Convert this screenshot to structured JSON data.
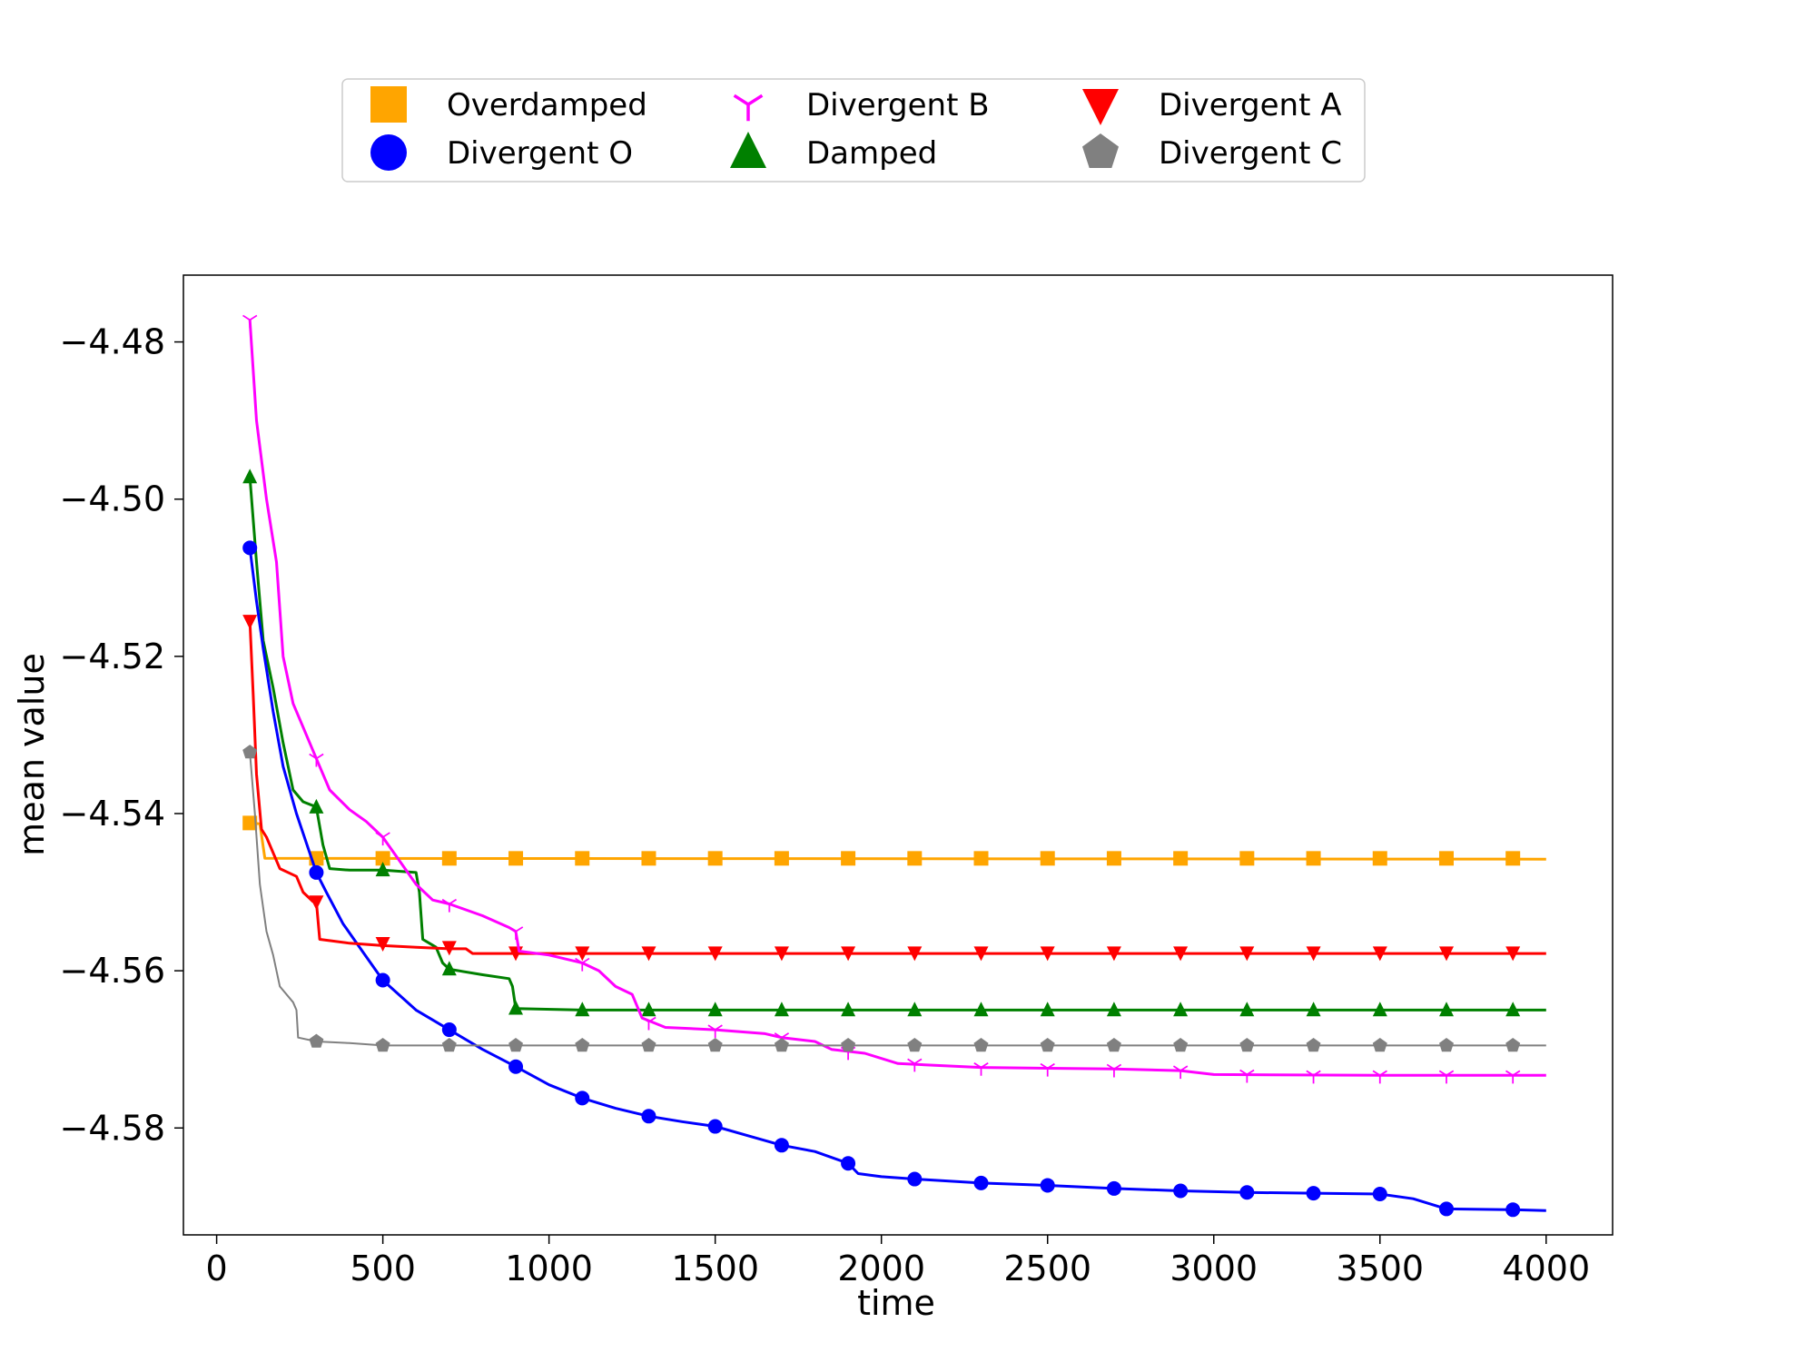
{
  "chart_data": {
    "type": "line",
    "xlabel": "time",
    "ylabel": "mean value",
    "xlim": [
      -100,
      4200
    ],
    "ylim": [
      -4.5936,
      -4.4715
    ],
    "xticks": [
      0,
      500,
      1000,
      1500,
      2000,
      2500,
      3000,
      3500,
      4000
    ],
    "xtick_labels": [
      "0",
      "500",
      "1000",
      "1500",
      "2000",
      "2500",
      "3000",
      "3500",
      "4000"
    ],
    "yticks": [
      -4.48,
      -4.5,
      -4.52,
      -4.54,
      -4.56,
      -4.58
    ],
    "ytick_labels": [
      "−4.48",
      "−4.50",
      "−4.52",
      "−4.54",
      "−4.56",
      "−4.58"
    ],
    "grid": false,
    "legend_position": "top-center, above plot",
    "series": [
      {
        "name": "Overdamped",
        "color": "#FFA500",
        "marker": "square",
        "line_width": 3,
        "line": [
          [
            100,
            -4.5412
          ],
          [
            130,
            -4.5413
          ],
          [
            145,
            -4.5457
          ],
          [
            4000,
            -4.5458
          ]
        ],
        "markers": [
          [
            100,
            -4.5412
          ],
          [
            300,
            -4.5457
          ],
          [
            500,
            -4.5457
          ],
          [
            700,
            -4.5457
          ],
          [
            900,
            -4.5457
          ],
          [
            1100,
            -4.5457
          ],
          [
            1300,
            -4.5457
          ],
          [
            1500,
            -4.5457
          ],
          [
            1700,
            -4.5457
          ],
          [
            1900,
            -4.5457
          ],
          [
            2100,
            -4.5457
          ],
          [
            2300,
            -4.5457
          ],
          [
            2500,
            -4.5457
          ],
          [
            2700,
            -4.5457
          ],
          [
            2900,
            -4.5457
          ],
          [
            3100,
            -4.5457
          ],
          [
            3300,
            -4.5457
          ],
          [
            3500,
            -4.5457
          ],
          [
            3700,
            -4.5457
          ],
          [
            3900,
            -4.5457
          ]
        ]
      },
      {
        "name": "Damped",
        "color": "#008000",
        "marker": "triangle-up",
        "line_width": 3,
        "line": [
          [
            100,
            -4.4972
          ],
          [
            120,
            -4.508
          ],
          [
            140,
            -4.518
          ],
          [
            170,
            -4.524
          ],
          [
            200,
            -4.531
          ],
          [
            230,
            -4.537
          ],
          [
            260,
            -4.5385
          ],
          [
            290,
            -4.539
          ],
          [
            300,
            -4.5392
          ],
          [
            320,
            -4.544
          ],
          [
            340,
            -4.547
          ],
          [
            400,
            -4.5472
          ],
          [
            500,
            -4.5472
          ],
          [
            600,
            -4.5475
          ],
          [
            610,
            -4.55
          ],
          [
            620,
            -4.556
          ],
          [
            640,
            -4.5565
          ],
          [
            660,
            -4.557
          ],
          [
            680,
            -4.559
          ],
          [
            700,
            -4.5598
          ],
          [
            800,
            -4.5605
          ],
          [
            880,
            -4.561
          ],
          [
            890,
            -4.562
          ],
          [
            900,
            -4.5648
          ],
          [
            1100,
            -4.565
          ],
          [
            4000,
            -4.565
          ]
        ],
        "markers": [
          [
            100,
            -4.4972
          ],
          [
            300,
            -4.5392
          ],
          [
            500,
            -4.5472
          ],
          [
            700,
            -4.5598
          ],
          [
            900,
            -4.5648
          ],
          [
            1100,
            -4.565
          ],
          [
            1300,
            -4.565
          ],
          [
            1500,
            -4.565
          ],
          [
            1700,
            -4.565
          ],
          [
            1900,
            -4.565
          ],
          [
            2100,
            -4.565
          ],
          [
            2300,
            -4.565
          ],
          [
            2500,
            -4.565
          ],
          [
            2700,
            -4.565
          ],
          [
            2900,
            -4.565
          ],
          [
            3100,
            -4.565
          ],
          [
            3300,
            -4.565
          ],
          [
            3500,
            -4.565
          ],
          [
            3700,
            -4.565
          ],
          [
            3900,
            -4.565
          ]
        ]
      },
      {
        "name": "Divergent O",
        "color": "#0000FF",
        "marker": "circle",
        "line_width": 3,
        "line": [
          [
            100,
            -4.5062
          ],
          [
            120,
            -4.513
          ],
          [
            140,
            -4.519
          ],
          [
            170,
            -4.527
          ],
          [
            200,
            -4.534
          ],
          [
            240,
            -4.54
          ],
          [
            280,
            -4.545
          ],
          [
            300,
            -4.5475
          ],
          [
            330,
            -4.55
          ],
          [
            380,
            -4.554
          ],
          [
            430,
            -4.557
          ],
          [
            500,
            -4.5612
          ],
          [
            600,
            -4.565
          ],
          [
            700,
            -4.5675
          ],
          [
            800,
            -4.57
          ],
          [
            900,
            -4.5722
          ],
          [
            1000,
            -4.5745
          ],
          [
            1100,
            -4.5762
          ],
          [
            1200,
            -4.5775
          ],
          [
            1300,
            -4.5785
          ],
          [
            1400,
            -4.5792
          ],
          [
            1500,
            -4.5798
          ],
          [
            1600,
            -4.581
          ],
          [
            1700,
            -4.5822
          ],
          [
            1800,
            -4.583
          ],
          [
            1900,
            -4.5845
          ],
          [
            1930,
            -4.5858
          ],
          [
            2000,
            -4.5862
          ],
          [
            2100,
            -4.5865
          ],
          [
            2300,
            -4.587
          ],
          [
            2500,
            -4.5873
          ],
          [
            2700,
            -4.5877
          ],
          [
            2900,
            -4.588
          ],
          [
            3100,
            -4.5882
          ],
          [
            3300,
            -4.5883
          ],
          [
            3500,
            -4.5884
          ],
          [
            3600,
            -4.589
          ],
          [
            3700,
            -4.5903
          ],
          [
            3900,
            -4.5904
          ],
          [
            4000,
            -4.5905
          ]
        ],
        "markers": [
          [
            100,
            -4.5062
          ],
          [
            300,
            -4.5475
          ],
          [
            500,
            -4.5612
          ],
          [
            700,
            -4.5675
          ],
          [
            900,
            -4.5722
          ],
          [
            1100,
            -4.5762
          ],
          [
            1300,
            -4.5785
          ],
          [
            1500,
            -4.5798
          ],
          [
            1700,
            -4.5822
          ],
          [
            1900,
            -4.5845
          ],
          [
            2100,
            -4.5865
          ],
          [
            2300,
            -4.587
          ],
          [
            2500,
            -4.5873
          ],
          [
            2700,
            -4.5877
          ],
          [
            2900,
            -4.588
          ],
          [
            3100,
            -4.5882
          ],
          [
            3300,
            -4.5883
          ],
          [
            3500,
            -4.5884
          ],
          [
            3700,
            -4.5903
          ],
          [
            3900,
            -4.5904
          ]
        ]
      },
      {
        "name": "Divergent  A",
        "color": "#FF0000",
        "marker": "triangle-down",
        "line_width": 3,
        "line": [
          [
            100,
            -4.5155
          ],
          [
            110,
            -4.525
          ],
          [
            120,
            -4.535
          ],
          [
            135,
            -4.542
          ],
          [
            150,
            -4.543
          ],
          [
            190,
            -4.547
          ],
          [
            240,
            -4.548
          ],
          [
            260,
            -4.55
          ],
          [
            290,
            -4.5512
          ],
          [
            300,
            -4.5512
          ],
          [
            310,
            -4.556
          ],
          [
            400,
            -4.5565
          ],
          [
            500,
            -4.5568
          ],
          [
            600,
            -4.557
          ],
          [
            700,
            -4.5572
          ],
          [
            750,
            -4.5572
          ],
          [
            770,
            -4.5578
          ],
          [
            1000,
            -4.5578
          ],
          [
            4000,
            -4.5578
          ]
        ],
        "markers": [
          [
            100,
            -4.5155
          ],
          [
            300,
            -4.5512
          ],
          [
            500,
            -4.5565
          ],
          [
            700,
            -4.557
          ],
          [
            900,
            -4.5577
          ],
          [
            1100,
            -4.5577
          ],
          [
            1300,
            -4.5577
          ],
          [
            1500,
            -4.5577
          ],
          [
            1700,
            -4.5577
          ],
          [
            1900,
            -4.5577
          ],
          [
            2100,
            -4.5577
          ],
          [
            2300,
            -4.5577
          ],
          [
            2500,
            -4.5577
          ],
          [
            2700,
            -4.5577
          ],
          [
            2900,
            -4.5577
          ],
          [
            3100,
            -4.5577
          ],
          [
            3300,
            -4.5577
          ],
          [
            3500,
            -4.5577
          ],
          [
            3700,
            -4.5577
          ],
          [
            3900,
            -4.5577
          ]
        ]
      },
      {
        "name": "Divergent  B",
        "color": "#FF00FF",
        "marker": "tri-down",
        "line_width": 3,
        "line": [
          [
            100,
            -4.4772
          ],
          [
            120,
            -4.49
          ],
          [
            150,
            -4.5
          ],
          [
            180,
            -4.508
          ],
          [
            200,
            -4.52
          ],
          [
            230,
            -4.526
          ],
          [
            260,
            -4.529
          ],
          [
            300,
            -4.533
          ],
          [
            340,
            -4.537
          ],
          [
            400,
            -4.5395
          ],
          [
            450,
            -4.541
          ],
          [
            500,
            -4.543
          ],
          [
            550,
            -4.546
          ],
          [
            600,
            -4.549
          ],
          [
            650,
            -4.551
          ],
          [
            700,
            -4.5515
          ],
          [
            800,
            -4.553
          ],
          [
            880,
            -4.5545
          ],
          [
            900,
            -4.555
          ],
          [
            910,
            -4.5575
          ],
          [
            1000,
            -4.558
          ],
          [
            1100,
            -4.559
          ],
          [
            1150,
            -4.56
          ],
          [
            1200,
            -4.562
          ],
          [
            1250,
            -4.563
          ],
          [
            1280,
            -4.566
          ],
          [
            1350,
            -4.5672
          ],
          [
            1500,
            -4.5675
          ],
          [
            1650,
            -4.568
          ],
          [
            1700,
            -4.5685
          ],
          [
            1800,
            -4.569
          ],
          [
            1850,
            -4.57
          ],
          [
            1950,
            -4.5705
          ],
          [
            2050,
            -4.5718
          ],
          [
            2300,
            -4.5723
          ],
          [
            2700,
            -4.5725
          ],
          [
            2900,
            -4.5727
          ],
          [
            3000,
            -4.5732
          ],
          [
            3500,
            -4.5733
          ],
          [
            4000,
            -4.5733
          ]
        ],
        "markers": [
          [
            100,
            -4.4772
          ],
          [
            300,
            -4.533
          ],
          [
            500,
            -4.543
          ],
          [
            700,
            -4.5515
          ],
          [
            900,
            -4.555
          ],
          [
            1100,
            -4.559
          ],
          [
            1300,
            -4.5665
          ],
          [
            1500,
            -4.5675
          ],
          [
            1700,
            -4.5685
          ],
          [
            1900,
            -4.5703
          ],
          [
            2100,
            -4.5718
          ],
          [
            2300,
            -4.5723
          ],
          [
            2500,
            -4.5724
          ],
          [
            2700,
            -4.5725
          ],
          [
            2900,
            -4.5727
          ],
          [
            3100,
            -4.5732
          ],
          [
            3300,
            -4.5733
          ],
          [
            3500,
            -4.5733
          ],
          [
            3700,
            -4.5733
          ],
          [
            3900,
            -4.5733
          ]
        ]
      },
      {
        "name": "Divergent  C",
        "color": "#808080",
        "marker": "pentagon",
        "line_width": 2,
        "line": [
          [
            100,
            -4.5322
          ],
          [
            115,
            -4.54
          ],
          [
            130,
            -4.549
          ],
          [
            150,
            -4.555
          ],
          [
            170,
            -4.558
          ],
          [
            190,
            -4.562
          ],
          [
            230,
            -4.564
          ],
          [
            240,
            -4.565
          ],
          [
            245,
            -4.5685
          ],
          [
            300,
            -4.569
          ],
          [
            400,
            -4.5692
          ],
          [
            500,
            -4.5695
          ],
          [
            4000,
            -4.5695
          ]
        ],
        "markers": [
          [
            100,
            -4.5322
          ],
          [
            300,
            -4.569
          ],
          [
            500,
            -4.5695
          ],
          [
            700,
            -4.5695
          ],
          [
            900,
            -4.5695
          ],
          [
            1100,
            -4.5695
          ],
          [
            1300,
            -4.5695
          ],
          [
            1500,
            -4.5695
          ],
          [
            1700,
            -4.5695
          ],
          [
            1900,
            -4.5695
          ],
          [
            2100,
            -4.5695
          ],
          [
            2300,
            -4.5695
          ],
          [
            2500,
            -4.5695
          ],
          [
            2700,
            -4.5695
          ],
          [
            2900,
            -4.5695
          ],
          [
            3100,
            -4.5695
          ],
          [
            3300,
            -4.5695
          ],
          [
            3500,
            -4.5695
          ],
          [
            3700,
            -4.5695
          ],
          [
            3900,
            -4.5695
          ]
        ]
      }
    ],
    "legend_order": [
      0,
      2,
      4,
      1,
      3,
      5
    ]
  }
}
